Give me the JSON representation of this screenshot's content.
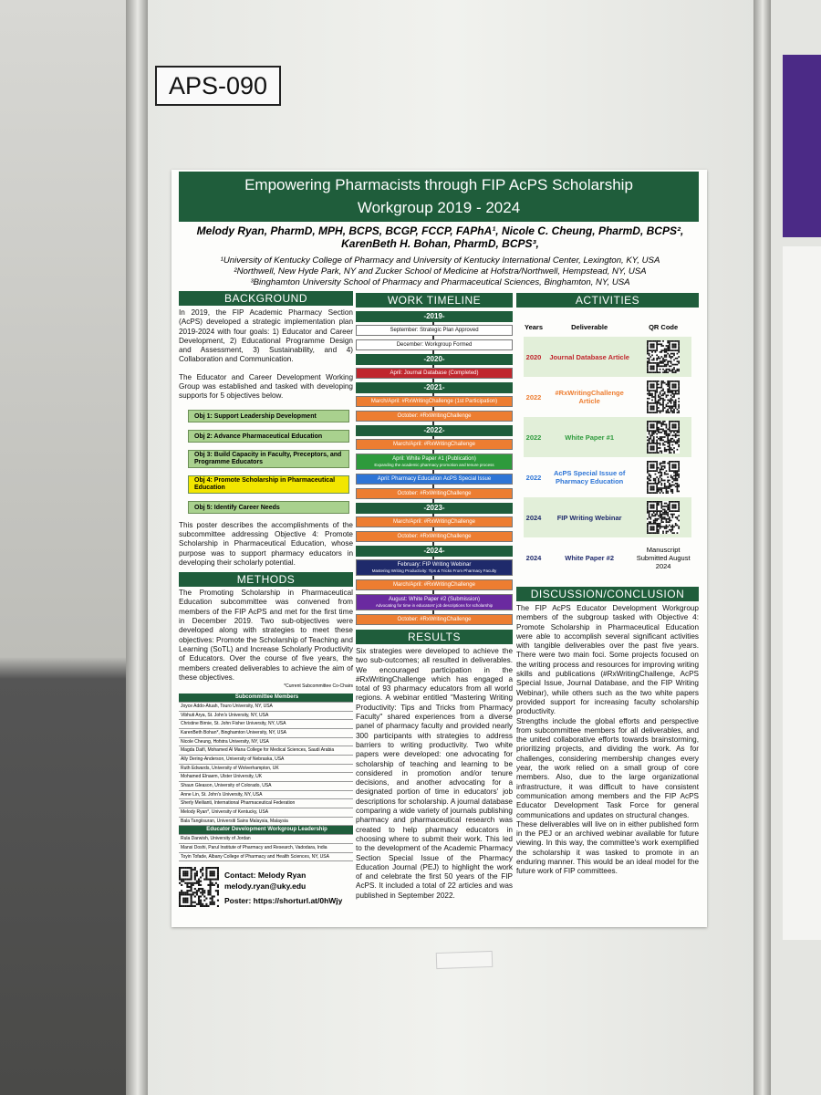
{
  "label": "APS-090",
  "poster": {
    "title": "Empowering Pharmacists through FIP AcPS Scholarship Workgroup 2019 - 2024",
    "authors": "Melody Ryan, PharmD, MPH, BCPS, BCGP, FCCP, FAPhA¹, Nicole C. Cheung, PharmD, BCPS², KarenBeth H. Bohan, PharmD, BCPS³,",
    "affiliations": [
      "¹University of Kentucky College of Pharmacy and University of Kentucky International Center, Lexington, KY, USA",
      "²Northwell, New Hyde Park, NY and Zucker School of Medicine at Hofstra/Northwell, Hempstead, NY, USA",
      "³Binghamton University School of Pharmacy and Pharmaceutical Sciences, Binghamton, NY, USA"
    ],
    "background": {
      "heading": "BACKGROUND",
      "paragraphs": [
        "In 2019, the FIP Academic Pharmacy Section (AcPS) developed a strategic implementation plan 2019-2024 with four goals: 1) Educator and Career Development, 2) Educational Programme Design and Assessment, 3) Sustainability, and 4) Collaboration and Communication.",
        "The Educator and Career Development Working Group was established and tasked with developing supports for 5 objectives below."
      ],
      "objectives": [
        {
          "text": "Obj 1: Support Leadership Development",
          "color": "#a9d18e"
        },
        {
          "text": "Obj 2: Advance Pharmaceutical Education",
          "color": "#a9d18e"
        },
        {
          "text": "Obj 3: Build Capacity in Faculty, Preceptors, and Programme Educators",
          "color": "#a9d18e"
        },
        {
          "text": "Obj 4: Promote Scholarship in Pharmaceutical Education",
          "color": "#f2e600"
        },
        {
          "text": "Obj 5: Identify Career Needs",
          "color": "#a9d18e"
        }
      ],
      "closing": "This poster describes the accomplishments of the subcommittee addressing Objective 4: Promote Scholarship in Pharmaceutical Education, whose purpose was to support pharmacy educators in developing their scholarly potential."
    },
    "methods": {
      "heading": "METHODS",
      "text": "The Promoting Scholarship in Pharmaceutical Education subcommittee was convened from members of the FIP AcPS and met for the first time in December 2019. Two sub-objectives were developed along with strategies to meet these objectives: Promote the Scholarship of Teaching and Learning (SoTL) and Increase Scholarly Productivity of Educators. Over the course of five years, the members created deliverables to achieve the aim of these objectives.",
      "note": "*Current Subcommittee Co-Chairs",
      "members_heading": "Subcommittee Members",
      "members": [
        "Joyce Addo-Atuah, Touro University, NY, USA",
        "Vibhuti Arya, St. John's University, NY, USA",
        "Christine Birnie, St. John Fisher University, NY, USA",
        "KarenBeth Bohan*, Binghamton University, NY, USA",
        "Nicole Cheung, Hofstra University, NY, USA",
        "Magda Daifi, Mohamed Al Mana College for Medical Sciences, Saudi Arabia",
        "Ally Dering-Anderson, University of Nebraska, USA",
        "Ruth Edwards, University of Wolverhampton, UK",
        "Mohamed Elnaem, Ulster University, UK",
        "Shaun Gleason, University of Colorado, USA",
        "Anne Lin, St. John's University, NY, USA",
        "Sherly Meilianti, International Pharmaceutical Federation",
        "Melody Ryan*, University of Kentucky, USA",
        "Bala Tangiisuran, Universiti Sains Malaysia, Malaysia"
      ],
      "leadership_heading": "Educator Development Workgroup Leadership",
      "leadership": [
        "Rula Darwish, University of Jordan",
        "Mansi Doshi, Parul Institute of Pharmacy and Research, Vadodara, India",
        "Toyin Tofade, Albany College of Pharmacy and Health Sciences, NY, USA"
      ]
    },
    "contact": {
      "name": "Contact: Melody Ryan",
      "email": "melody.ryan@uky.edu",
      "poster": "Poster: https://shorturl.at/0hWjy"
    },
    "timeline": {
      "heading": "WORK TIMELINE",
      "years": [
        {
          "year": "-2019-",
          "events": [
            {
              "text": "September: Strategic Plan Approved",
              "color": "#ffffff"
            },
            {
              "text": "December: Workgroup Formed",
              "color": "#ffffff"
            }
          ]
        },
        {
          "year": "-2020-",
          "events": [
            {
              "text": "April: Journal Database (Completed)",
              "color": "#c0262d"
            }
          ]
        },
        {
          "year": "-2021-",
          "events": [
            {
              "text": "March/April: #RxWritingChallenge (1st Participation)",
              "color": "#ed7d31"
            },
            {
              "text": "October: #RxWritingChallenge",
              "color": "#ed7d31"
            }
          ]
        },
        {
          "year": "-2022-",
          "events": [
            {
              "text": "March/April: #RxWritingChallenge",
              "color": "#ed7d31"
            },
            {
              "text": "April: White Paper #1 (Publication)",
              "sub": "Expanding the academic pharmacy promotion and tenure process",
              "color": "#2e9a3c"
            },
            {
              "text": "April: Pharmacy Education AcPS Special Issue",
              "color": "#2e75d6"
            },
            {
              "text": "October: #RxWritingChallenge",
              "color": "#ed7d31"
            }
          ]
        },
        {
          "year": "-2023-",
          "events": [
            {
              "text": "March/April: #RxWritingChallenge",
              "color": "#ed7d31"
            },
            {
              "text": "October: #RxWritingChallenge",
              "color": "#ed7d31"
            }
          ]
        },
        {
          "year": "-2024-",
          "events": [
            {
              "text": "February: FIP Writing Webinar",
              "sub": "Mastering Writing Productivity: Tips & Tricks From Pharmacy Faculty",
              "color": "#1f2a6b"
            },
            {
              "text": "March/April: #RxWritingChallenge",
              "color": "#ed7d31"
            },
            {
              "text": "August: White Paper #2 (Submission)",
              "sub": "Advocating for time in educators' job descriptions for scholarship",
              "color": "#6a2aa0"
            },
            {
              "text": "October: #RxWritingChallenge",
              "color": "#ed7d31"
            }
          ]
        }
      ]
    },
    "results": {
      "heading": "RESULTS",
      "text": "Six strategies were developed to achieve the two sub-outcomes; all resulted in deliverables. We encouraged participation in the #RxWritingChallenge which has engaged a total of 93 pharmacy educators from all world regions. A webinar entitled \"Mastering Writing Productivity: Tips and Tricks from Pharmacy Faculty\" shared experiences from a diverse panel of pharmacy faculty and provided nearly 300 participants with strategies to address barriers to writing productivity. Two white papers were developed: one advocating for scholarship of teaching and learning to be considered in promotion and/or tenure decisions, and another advocating for a designated portion of time in educators' job descriptions for scholarship. A journal database comparing a wide variety of journals publishing pharmacy and pharmaceutical research was created to help pharmacy educators in choosing where to submit their work. This led to the development of the Academic Pharmacy Section Special Issue of the Pharmacy Education Journal (PEJ) to highlight the work of and celebrate the first 50 years of the FIP AcPS. It included a total of 22 articles and was published in September 2022."
    },
    "activities": {
      "heading": "ACTIVITIES",
      "columns": [
        "Years",
        "Deliverable",
        "QR Code"
      ],
      "rows": [
        {
          "year": "2020",
          "deliverable": "Journal Database Article",
          "color": "#c0262d"
        },
        {
          "year": "2022",
          "deliverable": "#RxWritingChallenge Article",
          "color": "#ed7d31"
        },
        {
          "year": "2022",
          "deliverable": "White Paper #1",
          "color": "#2e9a3c"
        },
        {
          "year": "2022",
          "deliverable": "AcPS Special Issue of Pharmacy Education",
          "color": "#2e75d6"
        },
        {
          "year": "2024",
          "deliverable": "FIP Writing Webinar",
          "color": "#1f2a6b"
        },
        {
          "year": "2024",
          "deliverable": "White Paper #2",
          "qr_text": "Manuscript Submitted August 2024",
          "color": "#1f2a6b"
        }
      ]
    },
    "discussion": {
      "heading": "DISCUSSION/CONCLUSION",
      "paragraphs": [
        "The FIP AcPS Educator Development Workgroup members of the subgroup tasked with Objective 4: Promote Scholarship in Pharmaceutical Education were able to accomplish several significant activities with tangible deliverables over the past five years. There were two main foci. Some projects focused on the writing process and resources for improving writing skills and publications (#RxWritingChallenge, AcPS Special Issue, Journal Database, and the FIP Writing Webinar), while others such as the two white papers provided support for increasing faculty scholarship productivity.",
        "Strengths include the global efforts and perspective from subcommittee members for all deliverables, and the united collaborative efforts towards brainstorming, prioritizing projects, and dividing the work. As for challenges, considering membership changes every year, the work relied on a small group of core members. Also, due to the large organizational infrastructure, it was difficult to have consistent communication among members and the FIP AcPS Educator Development Task Force for general communications and updates on structural changes.",
        "These deliverables will live on in either published form in the PEJ or an archived webinar available for future viewing. In this way, the committee's work exemplified the scholarship it was tasked to promote in an enduring manner. This would be an ideal model for the future work of FIP committees."
      ]
    }
  }
}
